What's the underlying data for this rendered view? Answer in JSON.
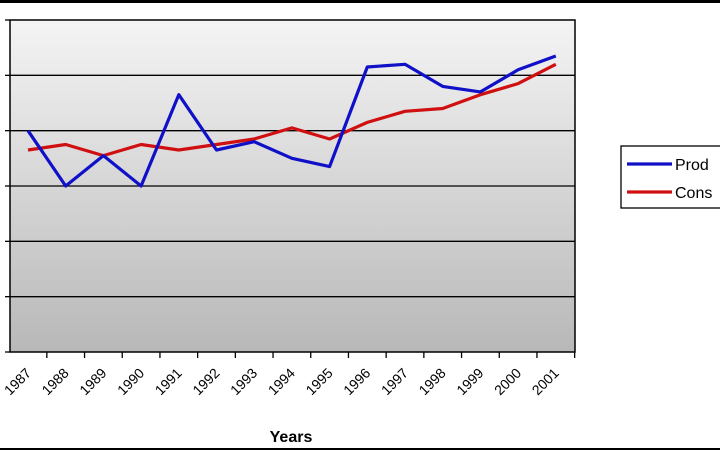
{
  "chart_data": {
    "type": "line",
    "title": "",
    "xlabel": "Years",
    "ylabel": "",
    "categories": [
      "1987",
      "1988",
      "1989",
      "1990",
      "1991",
      "1992",
      "1993",
      "1994",
      "1995",
      "1996",
      "1997",
      "1998",
      "1999",
      "2000",
      "2001"
    ],
    "series": [
      {
        "name": "Prod",
        "color": "#1010c8",
        "values": [
          4.0,
          3.0,
          3.55,
          3.0,
          4.65,
          3.65,
          3.8,
          3.5,
          3.35,
          5.15,
          5.2,
          4.8,
          4.7,
          5.1,
          5.35
        ]
      },
      {
        "name": "Cons",
        "color": "#d01010",
        "values": [
          3.65,
          3.75,
          3.55,
          3.75,
          3.65,
          3.75,
          3.85,
          4.05,
          3.85,
          4.15,
          4.35,
          4.4,
          4.65,
          4.85,
          5.2
        ]
      }
    ],
    "ylim": [
      0,
      6
    ],
    "grid": true,
    "legend_placement": "right"
  }
}
